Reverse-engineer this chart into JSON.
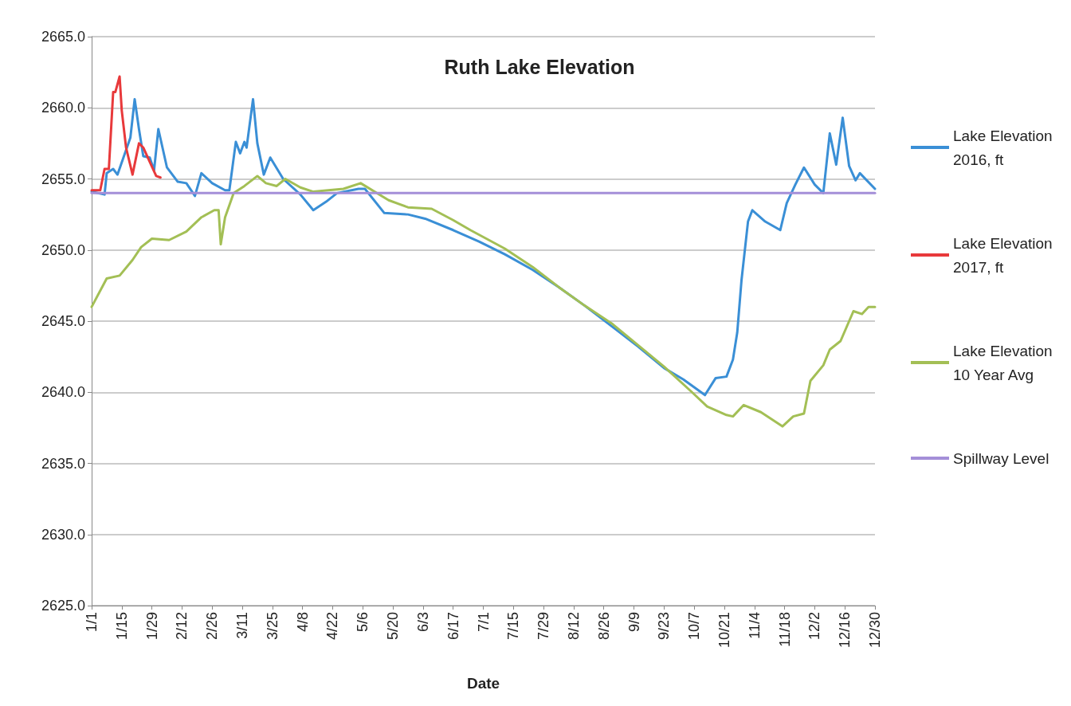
{
  "chart_data": {
    "type": "line",
    "title": "Ruth Lake Elevation",
    "xlabel": "Date",
    "xlim": [
      "--01-01",
      "--12-30"
    ],
    "xticks": [
      {
        "value": "--01-01",
        "label": "1/1"
      },
      {
        "value": "--01-15",
        "label": "1/15"
      },
      {
        "value": "--01-29",
        "label": "1/29"
      },
      {
        "value": "--02-12",
        "label": "2/12"
      },
      {
        "value": "--02-26",
        "label": "2/26"
      },
      {
        "value": "--03-11",
        "label": "3/11"
      },
      {
        "value": "--03-25",
        "label": "3/25"
      },
      {
        "value": "--04-08",
        "label": "4/8"
      },
      {
        "value": "--04-22",
        "label": "4/22"
      },
      {
        "value": "--05-06",
        "label": "5/6"
      },
      {
        "value": "--05-20",
        "label": "5/20"
      },
      {
        "value": "--06-03",
        "label": "6/3"
      },
      {
        "value": "--06-17",
        "label": "6/17"
      },
      {
        "value": "--07-01",
        "label": "7/1"
      },
      {
        "value": "--07-15",
        "label": "7/15"
      },
      {
        "value": "--07-29",
        "label": "7/29"
      },
      {
        "value": "--08-12",
        "label": "8/12"
      },
      {
        "value": "--08-26",
        "label": "8/26"
      },
      {
        "value": "--09-09",
        "label": "9/9"
      },
      {
        "value": "--09-23",
        "label": "9/23"
      },
      {
        "value": "--10-07",
        "label": "10/7"
      },
      {
        "value": "--10-21",
        "label": "10/21"
      },
      {
        "value": "--11-04",
        "label": "11/4"
      },
      {
        "value": "--11-18",
        "label": "11/18"
      },
      {
        "value": "--12-02",
        "label": "12/2"
      },
      {
        "value": "--12-16",
        "label": "12/16"
      },
      {
        "value": "--12-30",
        "label": "12/30"
      }
    ],
    "ylim": [
      2625,
      2665
    ],
    "yticks": [
      {
        "value": 2625,
        "label": "2625.0"
      },
      {
        "value": 2630,
        "label": "2630.0"
      },
      {
        "value": 2635,
        "label": "2635.0"
      },
      {
        "value": 2640,
        "label": "2640.0"
      },
      {
        "value": 2645,
        "label": "2645.0"
      },
      {
        "value": 2650,
        "label": "2650.0"
      },
      {
        "value": 2655,
        "label": "2655.0"
      },
      {
        "value": 2660,
        "label": "2660.0"
      },
      {
        "value": 2665,
        "label": "2665.0"
      }
    ],
    "grid": "y",
    "legend": "right",
    "marker": "none",
    "line_style": "solid",
    "series": [
      {
        "name": "Lake Elevation 2016, ft",
        "color": "#3a8fd6",
        "x": [
          "--01-01",
          "--01-07",
          "--01-08",
          "--01-11",
          "--01-13",
          "--01-19",
          "--01-21",
          "--01-23",
          "--01-25",
          "--01-28",
          "--01-30",
          "--02-01",
          "--02-05",
          "--02-10",
          "--02-14",
          "--02-18",
          "--02-21",
          "--02-26",
          "--03-03",
          "--03-05",
          "--03-08",
          "--03-10",
          "--03-12",
          "--03-13",
          "--03-16",
          "--03-18",
          "--03-21",
          "--03-24",
          "--03-30",
          "--04-07",
          "--04-13",
          "--04-19",
          "--04-24",
          "--05-04",
          "--05-07",
          "--05-16",
          "--05-27",
          "--06-04",
          "--06-17",
          "--06-29",
          "--07-11",
          "--07-24",
          "--08-05",
          "--08-17",
          "--08-30",
          "--09-11",
          "--09-23",
          "--10-02",
          "--10-12",
          "--10-17",
          "--10-22",
          "--10-25",
          "--10-27",
          "--10-29",
          "--11-01",
          "--11-03",
          "--11-09",
          "--11-16",
          "--11-19",
          "--11-23",
          "--11-27",
          "--12-02",
          "--12-06",
          "--12-09",
          "--12-12",
          "--12-15",
          "--12-18",
          "--12-21",
          "--12-23",
          "--12-30"
        ],
        "values": [
          2654.1,
          2653.9,
          2655.4,
          2655.7,
          2655.3,
          2657.9,
          2660.6,
          2658.5,
          2656.6,
          2656.5,
          2655.6,
          2658.5,
          2655.8,
          2654.8,
          2654.7,
          2653.8,
          2655.4,
          2654.7,
          2654.2,
          2654.2,
          2657.6,
          2656.8,
          2657.6,
          2657.2,
          2660.6,
          2657.5,
          2655.3,
          2656.5,
          2655.0,
          2653.9,
          2652.8,
          2653.4,
          2654.0,
          2654.3,
          2654.3,
          2652.6,
          2652.5,
          2652.2,
          2651.4,
          2650.6,
          2649.7,
          2648.6,
          2647.4,
          2646.1,
          2644.6,
          2643.2,
          2641.7,
          2640.9,
          2639.8,
          2641.0,
          2641.1,
          2642.3,
          2644.2,
          2647.9,
          2652.0,
          2652.8,
          2652.0,
          2651.4,
          2653.3,
          2654.6,
          2655.8,
          2654.6,
          2654.0,
          2658.2,
          2656.0,
          2659.3,
          2655.9,
          2654.9,
          2655.4,
          2654.3
        ]
      },
      {
        "name": "Lake Elevation 2017, ft",
        "color": "#e8393b",
        "x": [
          "--01-01",
          "--01-05",
          "--01-07",
          "--01-09",
          "--01-11",
          "--01-12",
          "--01-14",
          "--01-15",
          "--01-17",
          "--01-20",
          "--01-23",
          "--01-25",
          "--01-28",
          "--01-31",
          "--02-02"
        ],
        "values": [
          2654.2,
          2654.2,
          2655.7,
          2655.7,
          2661.1,
          2661.1,
          2662.2,
          2659.8,
          2657.2,
          2655.3,
          2657.5,
          2657.2,
          2656.2,
          2655.2,
          2655.1
        ]
      },
      {
        "name": "Lake Elevation 10 Year Avg",
        "color": "#a3bf55",
        "x": [
          "--01-01",
          "--01-08",
          "--01-14",
          "--01-20",
          "--01-24",
          "--01-29",
          "--02-06",
          "--02-14",
          "--02-21",
          "--02-27",
          "--02-29",
          "--03-01",
          "--03-03",
          "--03-07",
          "--03-12",
          "--03-18",
          "--03-22",
          "--03-27",
          "--03-31",
          "--04-07",
          "--04-13",
          "--04-27",
          "--05-05",
          "--05-18",
          "--05-27",
          "--06-07",
          "--06-17",
          "--06-25",
          "--07-11",
          "--07-24",
          "--08-05",
          "--08-17",
          "--08-30",
          "--09-11",
          "--09-23",
          "--10-06",
          "--10-13",
          "--10-22",
          "--10-25",
          "--10-30",
          "--11-07",
          "--11-17",
          "--11-22",
          "--11-27",
          "--11-30",
          "--12-06",
          "--12-09",
          "--12-14",
          "--12-20",
          "--12-24",
          "--12-27",
          "--12-30"
        ],
        "values": [
          2646.0,
          2648.0,
          2648.2,
          2649.3,
          2650.2,
          2650.8,
          2650.7,
          2651.3,
          2652.3,
          2652.8,
          2652.8,
          2650.4,
          2652.3,
          2654.0,
          2654.5,
          2655.2,
          2654.7,
          2654.5,
          2655.0,
          2654.4,
          2654.1,
          2654.3,
          2654.7,
          2653.5,
          2653.0,
          2652.9,
          2652.1,
          2651.4,
          2650.1,
          2648.8,
          2647.4,
          2646.1,
          2644.8,
          2643.3,
          2641.8,
          2640.0,
          2639.0,
          2638.4,
          2638.3,
          2639.1,
          2638.6,
          2637.6,
          2638.3,
          2638.5,
          2640.8,
          2641.9,
          2643.0,
          2643.6,
          2645.7,
          2645.5,
          2646.0,
          2646.0
        ]
      },
      {
        "name": "Spillway Level",
        "color": "#a48fd8",
        "x": [
          "--01-01",
          "--12-30"
        ],
        "values": [
          2654.0,
          2654.0
        ]
      }
    ]
  }
}
